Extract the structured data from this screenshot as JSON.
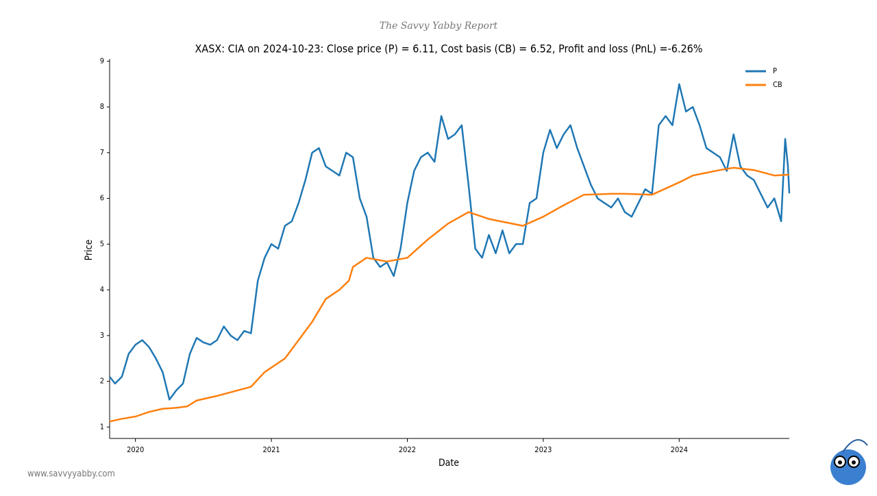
{
  "header": "The Savvy Yabby Report",
  "footer": "www.savvyyabby.com",
  "chart_data": {
    "type": "line",
    "title": "XASX: CIA on 2024-10-23: Close price (P) = 6.11, Cost basis (CB) = 6.52, Profit and loss (PnL) =-6.26%",
    "x_label": "Date",
    "y_label": "Price",
    "xlim": [
      2019.81,
      2024.81
    ],
    "ylim": [
      0.75,
      9.05
    ],
    "xticks": [
      2020,
      2021,
      2022,
      2023,
      2024
    ],
    "yticks": [
      1,
      2,
      3,
      4,
      5,
      6,
      7,
      8,
      9
    ],
    "legend": "upper right",
    "series": [
      {
        "name": "P",
        "color": "#1f77b4",
        "x": [
          2019.81,
          2019.85,
          2019.9,
          2019.95,
          2020.0,
          2020.05,
          2020.1,
          2020.15,
          2020.2,
          2020.25,
          2020.3,
          2020.35,
          2020.4,
          2020.45,
          2020.5,
          2020.55,
          2020.6,
          2020.65,
          2020.7,
          2020.75,
          2020.8,
          2020.85,
          2020.9,
          2020.95,
          2021.0,
          2021.05,
          2021.1,
          2021.15,
          2021.2,
          2021.25,
          2021.3,
          2021.35,
          2021.4,
          2021.45,
          2021.5,
          2021.55,
          2021.6,
          2021.65,
          2021.7,
          2021.75,
          2021.8,
          2021.85,
          2021.9,
          2021.95,
          2022.0,
          2022.05,
          2022.1,
          2022.15,
          2022.2,
          2022.25,
          2022.3,
          2022.35,
          2022.4,
          2022.45,
          2022.5,
          2022.55,
          2022.6,
          2022.65,
          2022.7,
          2022.75,
          2022.8,
          2022.85,
          2022.9,
          2022.95,
          2023.0,
          2023.05,
          2023.1,
          2023.15,
          2023.2,
          2023.25,
          2023.3,
          2023.35,
          2023.4,
          2023.45,
          2023.5,
          2023.55,
          2023.6,
          2023.65,
          2023.7,
          2023.75,
          2023.8,
          2023.85,
          2023.9,
          2023.95,
          2024.0,
          2024.05,
          2024.1,
          2024.15,
          2024.2,
          2024.25,
          2024.3,
          2024.35,
          2024.4,
          2024.45,
          2024.5,
          2024.55,
          2024.6,
          2024.65,
          2024.7,
          2024.75,
          2024.78,
          2024.8,
          2024.81
        ],
        "values": [
          2.1,
          1.95,
          2.1,
          2.6,
          2.8,
          2.9,
          2.75,
          2.5,
          2.2,
          1.6,
          1.8,
          1.95,
          2.6,
          2.95,
          2.85,
          2.8,
          2.9,
          3.2,
          3.0,
          2.9,
          3.1,
          3.05,
          4.2,
          4.7,
          5.0,
          4.9,
          5.4,
          5.5,
          5.9,
          6.4,
          7.0,
          7.1,
          6.7,
          6.6,
          6.5,
          7.0,
          6.9,
          6.0,
          5.6,
          4.7,
          4.5,
          4.6,
          4.3,
          4.9,
          5.9,
          6.6,
          6.9,
          7.0,
          6.8,
          7.8,
          7.3,
          7.4,
          7.6,
          6.3,
          4.9,
          4.7,
          5.2,
          4.8,
          5.3,
          4.8,
          5.0,
          5.0,
          5.9,
          6.0,
          7.0,
          7.5,
          7.1,
          7.4,
          7.6,
          7.1,
          6.7,
          6.3,
          6.0,
          5.9,
          5.8,
          6.0,
          5.7,
          5.6,
          5.9,
          6.2,
          6.1,
          7.6,
          7.8,
          7.6,
          8.5,
          7.9,
          8.0,
          7.6,
          7.1,
          7.0,
          6.9,
          6.6,
          7.4,
          6.7,
          6.5,
          6.4,
          6.1,
          5.8,
          6.0,
          5.5,
          7.3,
          6.7,
          6.11
        ]
      },
      {
        "name": "CB",
        "color": "#ff7f0e",
        "x": [
          2019.81,
          2019.9,
          2020.0,
          2020.1,
          2020.2,
          2020.3,
          2020.38,
          2020.45,
          2020.6,
          2020.75,
          2020.85,
          2020.95,
          2021.1,
          2021.2,
          2021.3,
          2021.4,
          2021.5,
          2021.57,
          2021.6,
          2021.7,
          2021.85,
          2022.0,
          2022.15,
          2022.3,
          2022.45,
          2022.6,
          2022.85,
          2023.0,
          2023.15,
          2023.3,
          2023.5,
          2023.6,
          2023.8,
          2024.0,
          2024.1,
          2024.3,
          2024.4,
          2024.55,
          2024.7,
          2024.81
        ],
        "values": [
          1.12,
          1.18,
          1.23,
          1.33,
          1.4,
          1.42,
          1.45,
          1.58,
          1.68,
          1.8,
          1.88,
          2.2,
          2.5,
          2.9,
          3.3,
          3.8,
          4.0,
          4.2,
          4.5,
          4.7,
          4.62,
          4.7,
          5.1,
          5.45,
          5.7,
          5.55,
          5.4,
          5.6,
          5.85,
          6.08,
          6.1,
          6.1,
          6.08,
          6.35,
          6.5,
          6.62,
          6.67,
          6.62,
          6.5,
          6.52
        ]
      }
    ]
  }
}
